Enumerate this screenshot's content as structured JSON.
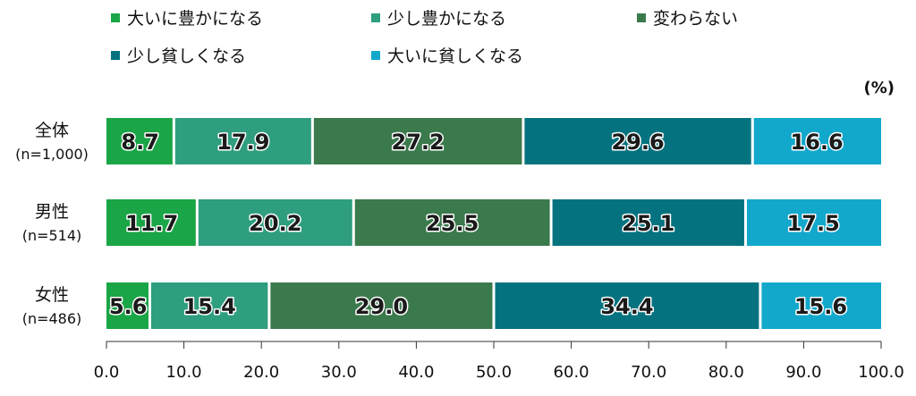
{
  "chart_data": {
    "type": "bar",
    "orientation": "horizontal",
    "stacked": true,
    "unit": "(%)",
    "categories": [
      {
        "label": "全体",
        "sublabel": "(n=1,000)"
      },
      {
        "label": "男性",
        "sublabel": "(n=514)"
      },
      {
        "label": "女性",
        "sublabel": "(n=486)"
      }
    ],
    "series": [
      {
        "name": "大いに豊かになる",
        "color": "#1aa546",
        "values": [
          8.7,
          11.7,
          5.6
        ]
      },
      {
        "name": "少し豊かになる",
        "color": "#2e9e7f",
        "values": [
          17.9,
          20.2,
          15.4
        ]
      },
      {
        "name": "変わらない",
        "color": "#3b7a4c",
        "values": [
          27.2,
          25.5,
          29.0
        ]
      },
      {
        "name": "少し貧しくなる",
        "color": "#05737f",
        "values": [
          29.6,
          25.1,
          34.4
        ]
      },
      {
        "name": "大いに貧しくなる",
        "color": "#12a8cc",
        "values": [
          16.6,
          17.5,
          15.6
        ]
      }
    ],
    "xlim": [
      0,
      100
    ],
    "xticks": [
      "0.0",
      "10.0",
      "20.0",
      "30.0",
      "40.0",
      "50.0",
      "60.0",
      "70.0",
      "80.0",
      "90.0",
      "100.0"
    ],
    "legend_position": "top",
    "grid": false
  }
}
